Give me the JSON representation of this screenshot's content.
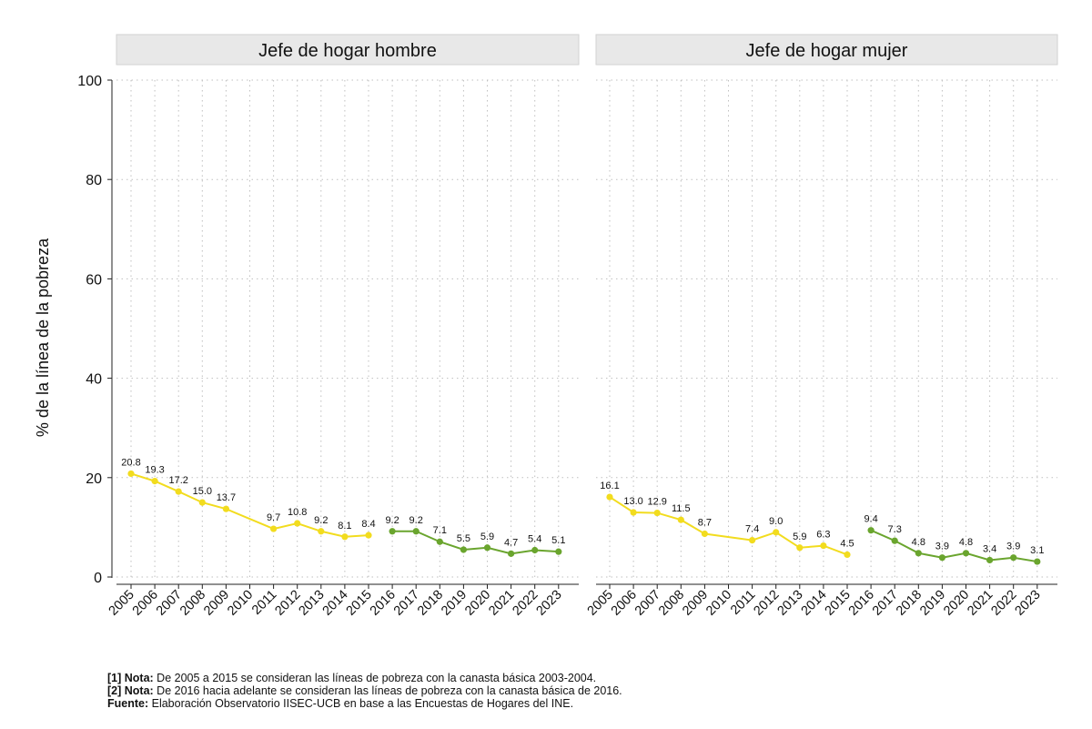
{
  "chart_data": {
    "type": "line",
    "ylabel": "% de la línea de la pobreza",
    "ylim": [
      0,
      100
    ],
    "yticks": [
      0,
      20,
      40,
      60,
      80,
      100
    ],
    "x": [
      "2005",
      "2006",
      "2007",
      "2008",
      "2009",
      "2010",
      "2011",
      "2012",
      "2013",
      "2014",
      "2015",
      "2016",
      "2017",
      "2018",
      "2019",
      "2020",
      "2021",
      "2022",
      "2023"
    ],
    "colors": {
      "canasta_2003_2004": "#f2dc1e",
      "canasta_2016": "#6aa52e",
      "grid": "#bfbfbf",
      "panel_header": "#e8e8e8"
    },
    "panels": [
      {
        "title": "Jefe de hogar hombre",
        "series": [
          {
            "name": "canasta_2003_2004",
            "x": [
              "2005",
              "2006",
              "2007",
              "2008",
              "2009",
              "2011",
              "2012",
              "2013",
              "2014",
              "2015"
            ],
            "values": [
              20.8,
              19.3,
              17.2,
              15.0,
              13.7,
              9.7,
              10.8,
              9.2,
              8.1,
              8.4
            ],
            "labels": [
              "20.8",
              "19.3",
              "17.2",
              "15.0",
              "13.7",
              "9.7",
              "10.8",
              "9.2",
              "8.1",
              "8.4"
            ]
          },
          {
            "name": "canasta_2016",
            "x": [
              "2016",
              "2017",
              "2018",
              "2019",
              "2020",
              "2021",
              "2022",
              "2023"
            ],
            "values": [
              9.2,
              9.2,
              7.1,
              5.5,
              5.9,
              4.7,
              5.4,
              5.1
            ],
            "labels": [
              "9.2",
              "9.2",
              "7.1",
              "5.5",
              "5.9",
              "4.7",
              "5.4",
              "5.1"
            ]
          }
        ]
      },
      {
        "title": "Jefe de hogar mujer",
        "series": [
          {
            "name": "canasta_2003_2004",
            "x": [
              "2005",
              "2006",
              "2007",
              "2008",
              "2009",
              "2011",
              "2012",
              "2013",
              "2014",
              "2015"
            ],
            "values": [
              16.1,
              13.0,
              12.9,
              11.5,
              8.7,
              7.4,
              9.0,
              5.9,
              6.3,
              4.5
            ],
            "labels": [
              "16.1",
              "13.0",
              "12.9",
              "11.5",
              "8.7",
              "7.4",
              "9.0",
              "5.9",
              "6.3",
              "4.5"
            ]
          },
          {
            "name": "canasta_2016",
            "x": [
              "2016",
              "2017",
              "2018",
              "2019",
              "2020",
              "2021",
              "2022",
              "2023"
            ],
            "values": [
              9.4,
              7.3,
              4.8,
              3.9,
              4.8,
              3.4,
              3.9,
              3.1
            ],
            "labels": [
              "9.4",
              "7.3",
              "4.8",
              "3.9",
              "4.8",
              "3.4",
              "3.9",
              "3.1"
            ]
          }
        ]
      }
    ]
  },
  "notes": {
    "note1_tag": "[1] Nota:",
    "note1_text": " De 2005 a 2015 se consideran las líneas de pobreza con la canasta básica 2003-2004.",
    "note2_tag": "[2] Nota:",
    "note2_text": " De 2016 hacia adelante se consideran las líneas de pobreza con la canasta básica de 2016.",
    "source_tag": "Fuente:",
    "source_text": " Elaboración Observatorio IISEC-UCB en base a las Encuestas de Hogares del INE."
  }
}
